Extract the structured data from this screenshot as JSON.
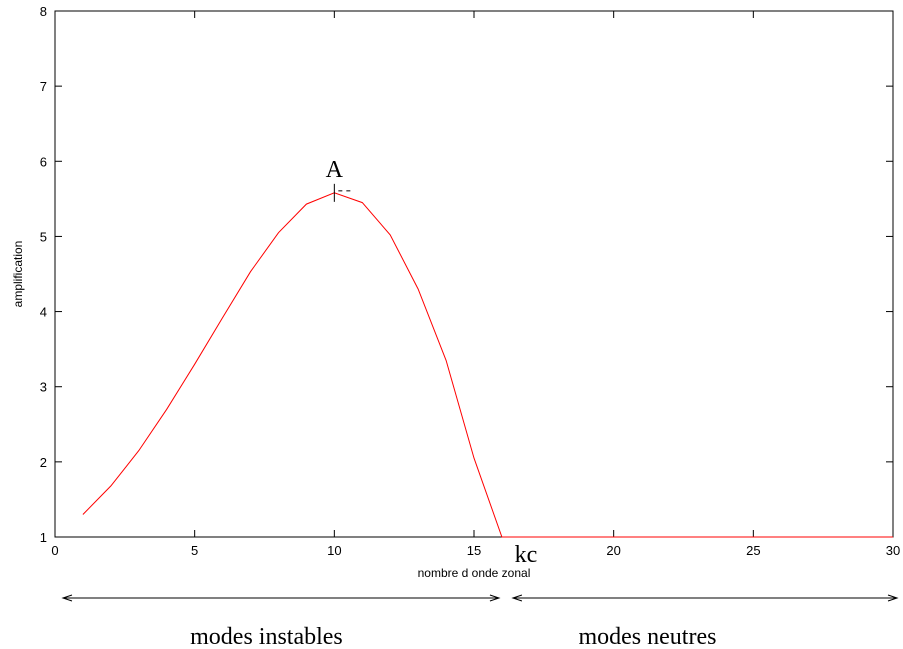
{
  "chart_data": {
    "type": "line",
    "title": "",
    "xlabel": "nombre d onde zonal",
    "ylabel": "amplification",
    "xlim": [
      0,
      30
    ],
    "ylim": [
      1,
      8
    ],
    "xticks": [
      0,
      5,
      10,
      15,
      20,
      25,
      30
    ],
    "yticks": [
      1,
      2,
      3,
      4,
      5,
      6,
      7,
      8
    ],
    "grid": false,
    "series": [
      {
        "color": "#ff0000",
        "x": [
          1,
          2,
          3,
          4,
          5,
          6,
          7,
          8,
          9,
          10,
          11,
          12,
          13,
          14,
          15,
          16,
          17,
          18,
          19,
          20,
          21,
          22,
          23,
          24,
          25,
          26,
          27,
          28,
          29,
          30
        ],
        "y": [
          1.3,
          1.68,
          2.15,
          2.7,
          3.3,
          3.92,
          4.53,
          5.05,
          5.43,
          5.58,
          5.45,
          5.02,
          4.3,
          3.35,
          2.05,
          1.0,
          1.0,
          1.0,
          1.0,
          1.0,
          1.0,
          1.0,
          1.0,
          1.0,
          1.0,
          1.0,
          1.0,
          1.0,
          1.0,
          1.0
        ]
      }
    ],
    "annotations": {
      "peak_label": "A",
      "peak_point": [
        10,
        5.58
      ],
      "critical_label": "kc",
      "critical_x": 16
    },
    "regions": [
      {
        "label": "modes instables",
        "from": 0,
        "to": 16
      },
      {
        "label": "modes neutres",
        "from": 16,
        "to": 30
      }
    ]
  }
}
